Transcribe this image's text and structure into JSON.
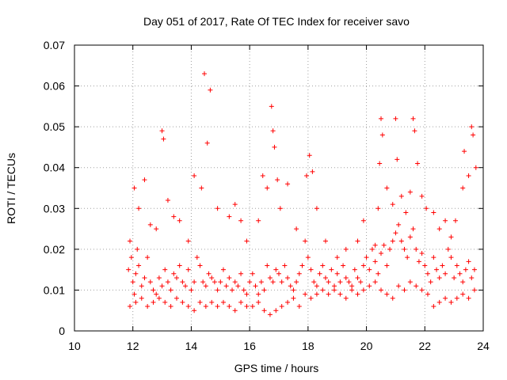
{
  "chart_data": {
    "type": "scatter",
    "title": "Day 051 of 2017, Rate Of TEC Index for receiver savo",
    "xlabel": "GPS time / hours",
    "ylabel": "ROTI / TECUs",
    "xlim": [
      10,
      24
    ],
    "ylim": [
      0,
      0.07
    ],
    "xticks": [
      "10",
      "12",
      "14",
      "16",
      "18",
      "20",
      "22",
      "24"
    ],
    "yticks": [
      "0",
      "0.01",
      "0.02",
      "0.03",
      "0.04",
      "0.05",
      "0.06",
      "0.07"
    ],
    "grid": true,
    "marker": "+",
    "color": "#ff0000",
    "series": [
      {
        "x": [
          11.85,
          11.9,
          11.95,
          12.0,
          12.05,
          12.1,
          12.15,
          12.2,
          12.3,
          12.4,
          12.5,
          12.6,
          12.7,
          12.8,
          12.9,
          13.0,
          13.1,
          13.2,
          13.3,
          13.4,
          13.5,
          13.6,
          13.7,
          13.8,
          13.9,
          14.0,
          14.1,
          14.2,
          14.3,
          14.4,
          14.5,
          14.6,
          14.7,
          14.8,
          14.9,
          15.0,
          15.1,
          15.2,
          15.3,
          15.4,
          15.5,
          15.6,
          15.7,
          15.8,
          15.9,
          16.0,
          16.1,
          16.2,
          16.3,
          16.4,
          16.5,
          16.6,
          16.7,
          16.8,
          16.9,
          17.0,
          17.1,
          17.2,
          17.3,
          17.4,
          17.5,
          17.6,
          17.7,
          17.8,
          17.9,
          18.0,
          18.1,
          18.2,
          18.3,
          18.4,
          18.5,
          18.6,
          18.7,
          18.8,
          18.9,
          19.0,
          19.1,
          19.2,
          19.3,
          19.4,
          19.5,
          19.6,
          19.7,
          19.8,
          19.9,
          20.0,
          20.1,
          20.2,
          20.3,
          20.4,
          20.5,
          20.6,
          20.7,
          20.8,
          20.9,
          21.0,
          21.1,
          21.2,
          21.3,
          21.4,
          21.5,
          21.6,
          21.7,
          21.8,
          21.9,
          22.0,
          22.1,
          22.2,
          22.3,
          22.4,
          22.5,
          22.6,
          22.7,
          22.8,
          22.9,
          23.0,
          23.1,
          23.2,
          23.3,
          23.4,
          23.5,
          23.6,
          23.7,
          12.05,
          12.2,
          12.4,
          12.6,
          12.8,
          13.0,
          13.05,
          13.2,
          13.4,
          13.6,
          13.9,
          14.1,
          14.35,
          14.45,
          14.55,
          14.65,
          14.9,
          15.3,
          15.5,
          15.7,
          15.9,
          16.3,
          16.45,
          16.6,
          16.75,
          16.8,
          16.85,
          16.95,
          17.05,
          17.3,
          17.6,
          17.95,
          18.05,
          18.15,
          18.3,
          18.6,
          19.0,
          19.3,
          19.7,
          19.9,
          20.3,
          20.4,
          20.45,
          20.5,
          20.55,
          20.7,
          20.9,
          21.0,
          21.05,
          21.2,
          21.35,
          21.5,
          21.6,
          21.65,
          21.75,
          21.9,
          22.05,
          22.3,
          22.5,
          22.7,
          22.9,
          23.05,
          23.3,
          23.35,
          23.5,
          23.6,
          23.65,
          23.75,
          11.9,
          12.1,
          12.3,
          12.5,
          12.7,
          12.9,
          13.1,
          13.3,
          13.5,
          13.7,
          13.9,
          14.1,
          14.3,
          14.5,
          14.7,
          14.9,
          15.1,
          15.3,
          15.5,
          15.7,
          15.9,
          16.1,
          16.3,
          16.5,
          16.7,
          16.9,
          17.1,
          17.3,
          17.5,
          17.7,
          17.9,
          18.1,
          18.3,
          18.5,
          18.7,
          18.9,
          19.1,
          19.3,
          19.5,
          19.7,
          19.9,
          20.1,
          20.3,
          20.5,
          20.7,
          20.9,
          21.1,
          21.3,
          21.5,
          21.7,
          21.9,
          22.1,
          22.3,
          22.5,
          22.7,
          22.9,
          23.1,
          23.3,
          23.5,
          23.7
        ],
        "y": [
          0.015,
          0.022,
          0.018,
          0.012,
          0.009,
          0.014,
          0.02,
          0.016,
          0.011,
          0.013,
          0.018,
          0.012,
          0.01,
          0.009,
          0.013,
          0.011,
          0.015,
          0.012,
          0.01,
          0.014,
          0.013,
          0.016,
          0.012,
          0.011,
          0.015,
          0.01,
          0.012,
          0.018,
          0.016,
          0.012,
          0.011,
          0.014,
          0.013,
          0.012,
          0.01,
          0.012,
          0.015,
          0.011,
          0.013,
          0.01,
          0.012,
          0.011,
          0.014,
          0.01,
          0.009,
          0.012,
          0.014,
          0.011,
          0.009,
          0.012,
          0.01,
          0.016,
          0.013,
          0.012,
          0.015,
          0.014,
          0.012,
          0.016,
          0.013,
          0.011,
          0.01,
          0.012,
          0.014,
          0.016,
          0.022,
          0.018,
          0.015,
          0.012,
          0.011,
          0.014,
          0.016,
          0.013,
          0.012,
          0.015,
          0.011,
          0.014,
          0.012,
          0.016,
          0.013,
          0.012,
          0.011,
          0.015,
          0.013,
          0.012,
          0.016,
          0.018,
          0.015,
          0.02,
          0.017,
          0.014,
          0.019,
          0.021,
          0.016,
          0.02,
          0.022,
          0.024,
          0.026,
          0.022,
          0.02,
          0.018,
          0.023,
          0.025,
          0.02,
          0.017,
          0.019,
          0.016,
          0.014,
          0.012,
          0.018,
          0.015,
          0.013,
          0.016,
          0.014,
          0.02,
          0.018,
          0.013,
          0.016,
          0.014,
          0.012,
          0.015,
          0.017,
          0.013,
          0.015,
          0.035,
          0.03,
          0.037,
          0.026,
          0.025,
          0.049,
          0.047,
          0.032,
          0.028,
          0.027,
          0.022,
          0.038,
          0.035,
          0.063,
          0.046,
          0.059,
          0.03,
          0.028,
          0.031,
          0.027,
          0.022,
          0.027,
          0.038,
          0.035,
          0.055,
          0.049,
          0.045,
          0.037,
          0.03,
          0.036,
          0.025,
          0.038,
          0.043,
          0.039,
          0.03,
          0.022,
          0.018,
          0.02,
          0.022,
          0.027,
          0.021,
          0.03,
          0.041,
          0.052,
          0.048,
          0.035,
          0.031,
          0.052,
          0.042,
          0.033,
          0.029,
          0.034,
          0.052,
          0.049,
          0.041,
          0.033,
          0.03,
          0.029,
          0.025,
          0.027,
          0.023,
          0.027,
          0.035,
          0.044,
          0.038,
          0.05,
          0.048,
          0.04,
          0.006,
          0.007,
          0.008,
          0.006,
          0.007,
          0.008,
          0.007,
          0.006,
          0.008,
          0.007,
          0.006,
          0.005,
          0.007,
          0.006,
          0.007,
          0.006,
          0.007,
          0.006,
          0.005,
          0.007,
          0.006,
          0.006,
          0.007,
          0.005,
          0.004,
          0.005,
          0.006,
          0.007,
          0.008,
          0.006,
          0.009,
          0.008,
          0.009,
          0.01,
          0.009,
          0.01,
          0.009,
          0.008,
          0.01,
          0.009,
          0.01,
          0.011,
          0.012,
          0.01,
          0.009,
          0.008,
          0.011,
          0.01,
          0.012,
          0.011,
          0.01,
          0.009,
          0.006,
          0.007,
          0.008,
          0.007,
          0.008,
          0.009,
          0.008,
          0.01
        ]
      }
    ]
  }
}
